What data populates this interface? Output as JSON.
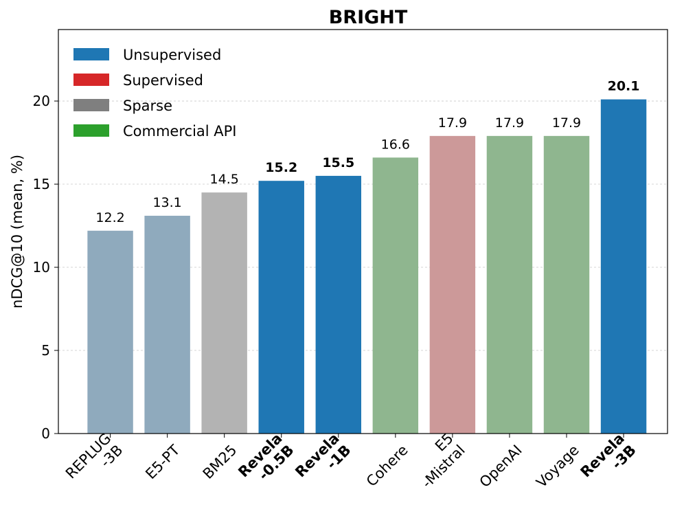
{
  "chart_data": {
    "type": "bar",
    "title": "BRIGHT",
    "xlabel": "",
    "ylabel": "nDCG@10 (mean, %)",
    "ylim": [
      0,
      24.3
    ],
    "yticks": [
      0,
      5,
      10,
      15,
      20
    ],
    "grid": "y-dashed",
    "legend_placement": "top-left",
    "legend": [
      {
        "label": "Unsupervised",
        "color": "#1f77b4"
      },
      {
        "label": "Supervised",
        "color": "#d62728"
      },
      {
        "label": "Sparse",
        "color": "#7f7f7f"
      },
      {
        "label": "Commercial API",
        "color": "#2ca02c"
      }
    ],
    "categories": [
      "REPLUG\n-3B",
      "E5-PT",
      "BM25",
      "Revela\n-0.5B",
      "Revela\n-1B",
      "Cohere",
      "E5\n-Mistral",
      "OpenAI",
      "Voyage",
      "Revela\n-3B"
    ],
    "values": [
      12.2,
      13.1,
      14.5,
      15.2,
      15.5,
      16.6,
      17.9,
      17.9,
      17.9,
      20.1
    ],
    "value_labels": [
      "12.2",
      "13.1",
      "14.5",
      "15.2",
      "15.5",
      "16.6",
      "17.9",
      "17.9",
      "17.9",
      "20.1"
    ],
    "bold": [
      false,
      false,
      false,
      true,
      true,
      false,
      false,
      false,
      false,
      true
    ],
    "bar_colors": [
      "#8faabd",
      "#8faabd",
      "#b3b3b3",
      "#1f77b4",
      "#1f77b4",
      "#8fb68f",
      "#cc9999",
      "#8fb68f",
      "#8fb68f",
      "#1f77b4"
    ]
  }
}
